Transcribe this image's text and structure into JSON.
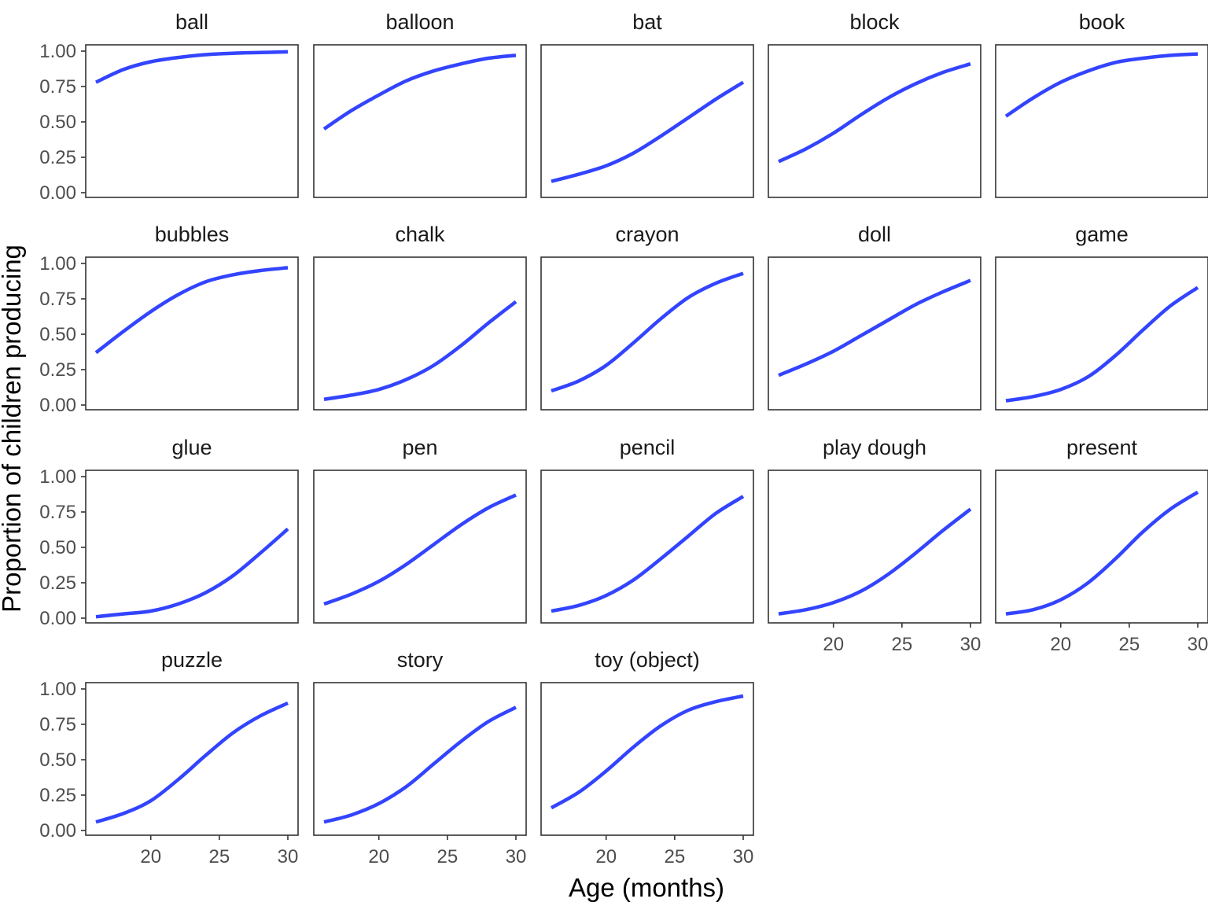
{
  "chart_data": {
    "type": "line",
    "xlabel": "Age (months)",
    "ylabel": "Proportion of children producing",
    "xlim": [
      16,
      30
    ],
    "ylim": [
      0,
      1
    ],
    "x_ticks": [
      20,
      25,
      30
    ],
    "y_ticks": [
      "0.00",
      "0.25",
      "0.50",
      "0.75",
      "1.00"
    ],
    "line_color": "#3344ff",
    "facets": [
      {
        "label": "ball",
        "x": [
          16,
          18,
          20,
          22,
          24,
          26,
          28,
          30
        ],
        "y": [
          0.78,
          0.87,
          0.925,
          0.955,
          0.975,
          0.985,
          0.99,
          0.995
        ]
      },
      {
        "label": "balloon",
        "x": [
          16,
          18,
          20,
          22,
          24,
          26,
          28,
          30
        ],
        "y": [
          0.45,
          0.58,
          0.69,
          0.79,
          0.86,
          0.91,
          0.95,
          0.97
        ]
      },
      {
        "label": "bat",
        "x": [
          16,
          18,
          20,
          22,
          24,
          26,
          28,
          30
        ],
        "y": [
          0.08,
          0.13,
          0.19,
          0.28,
          0.4,
          0.53,
          0.66,
          0.78
        ]
      },
      {
        "label": "block",
        "x": [
          16,
          18,
          20,
          22,
          24,
          26,
          28,
          30
        ],
        "y": [
          0.22,
          0.31,
          0.42,
          0.55,
          0.67,
          0.77,
          0.85,
          0.91
        ]
      },
      {
        "label": "book",
        "x": [
          16,
          18,
          20,
          22,
          24,
          26,
          28,
          30
        ],
        "y": [
          0.54,
          0.67,
          0.78,
          0.86,
          0.92,
          0.95,
          0.97,
          0.98
        ]
      },
      {
        "label": "bubbles",
        "x": [
          16,
          18,
          20,
          22,
          24,
          26,
          28,
          30
        ],
        "y": [
          0.37,
          0.52,
          0.66,
          0.78,
          0.87,
          0.92,
          0.95,
          0.97
        ]
      },
      {
        "label": "chalk",
        "x": [
          16,
          18,
          20,
          22,
          24,
          26,
          28,
          30
        ],
        "y": [
          0.04,
          0.07,
          0.11,
          0.18,
          0.28,
          0.42,
          0.58,
          0.73
        ]
      },
      {
        "label": "crayon",
        "x": [
          16,
          18,
          20,
          22,
          24,
          26,
          28,
          30
        ],
        "y": [
          0.1,
          0.17,
          0.28,
          0.44,
          0.61,
          0.76,
          0.86,
          0.93
        ]
      },
      {
        "label": "doll",
        "x": [
          16,
          18,
          20,
          22,
          24,
          26,
          28,
          30
        ],
        "y": [
          0.21,
          0.29,
          0.38,
          0.49,
          0.6,
          0.71,
          0.8,
          0.88
        ]
      },
      {
        "label": "game",
        "x": [
          16,
          18,
          20,
          22,
          24,
          26,
          28,
          30
        ],
        "y": [
          0.03,
          0.06,
          0.11,
          0.2,
          0.35,
          0.53,
          0.7,
          0.83
        ]
      },
      {
        "label": "glue",
        "x": [
          16,
          18,
          20,
          22,
          24,
          26,
          28,
          30
        ],
        "y": [
          0.01,
          0.03,
          0.05,
          0.1,
          0.18,
          0.3,
          0.46,
          0.63
        ]
      },
      {
        "label": "pen",
        "x": [
          16,
          18,
          20,
          22,
          24,
          26,
          28,
          30
        ],
        "y": [
          0.1,
          0.17,
          0.26,
          0.38,
          0.52,
          0.66,
          0.78,
          0.87
        ]
      },
      {
        "label": "pencil",
        "x": [
          16,
          18,
          20,
          22,
          24,
          26,
          28,
          30
        ],
        "y": [
          0.05,
          0.09,
          0.16,
          0.27,
          0.42,
          0.58,
          0.74,
          0.86
        ]
      },
      {
        "label": "play dough",
        "x": [
          16,
          18,
          20,
          22,
          24,
          26,
          28,
          30
        ],
        "y": [
          0.03,
          0.06,
          0.11,
          0.19,
          0.31,
          0.46,
          0.62,
          0.77
        ]
      },
      {
        "label": "present",
        "x": [
          16,
          18,
          20,
          22,
          24,
          26,
          28,
          30
        ],
        "y": [
          0.03,
          0.06,
          0.13,
          0.25,
          0.42,
          0.61,
          0.77,
          0.89
        ]
      },
      {
        "label": "puzzle",
        "x": [
          16,
          18,
          20,
          22,
          24,
          26,
          28,
          30
        ],
        "y": [
          0.06,
          0.12,
          0.21,
          0.36,
          0.53,
          0.69,
          0.81,
          0.9
        ]
      },
      {
        "label": "story",
        "x": [
          16,
          18,
          20,
          22,
          24,
          26,
          28,
          30
        ],
        "y": [
          0.06,
          0.11,
          0.19,
          0.31,
          0.47,
          0.63,
          0.77,
          0.87
        ]
      },
      {
        "label": "toy (object)",
        "x": [
          16,
          18,
          20,
          22,
          24,
          26,
          28,
          30
        ],
        "y": [
          0.16,
          0.27,
          0.42,
          0.59,
          0.74,
          0.85,
          0.91,
          0.95
        ]
      }
    ]
  }
}
